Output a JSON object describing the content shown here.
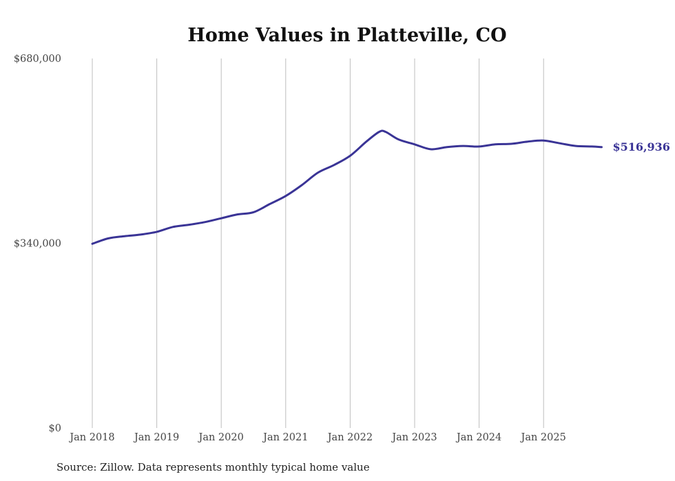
{
  "chart_data": {
    "type": "line",
    "title": "Home Values in Platteville, CO",
    "xlabel": "",
    "ylabel": "",
    "ylim": [
      0,
      680000
    ],
    "y_ticks": [
      {
        "value": 0,
        "label": "$0"
      },
      {
        "value": 340000,
        "label": "$340,000"
      },
      {
        "value": 680000,
        "label": "$680,000"
      }
    ],
    "x_ticks": [
      {
        "value": 2018,
        "label": "Jan 2018"
      },
      {
        "value": 2019,
        "label": "Jan 2019"
      },
      {
        "value": 2020,
        "label": "Jan 2020"
      },
      {
        "value": 2021,
        "label": "Jan 2021"
      },
      {
        "value": 2022,
        "label": "Jan 2022"
      },
      {
        "value": 2023,
        "label": "Jan 2023"
      },
      {
        "value": 2024,
        "label": "Jan 2024"
      },
      {
        "value": 2025,
        "label": "Jan 2025"
      }
    ],
    "xlim": [
      2018,
      2025.9
    ],
    "grid": "vertical",
    "series": [
      {
        "name": "Typical home value",
        "color": "#3a3496",
        "x": [
          2018.0,
          2018.25,
          2018.5,
          2018.75,
          2019.0,
          2019.25,
          2019.5,
          2019.75,
          2020.0,
          2020.25,
          2020.5,
          2020.75,
          2021.0,
          2021.25,
          2021.5,
          2021.75,
          2022.0,
          2022.25,
          2022.45,
          2022.55,
          2022.75,
          2023.0,
          2023.25,
          2023.5,
          2023.75,
          2024.0,
          2024.25,
          2024.5,
          2024.75,
          2025.0,
          2025.25,
          2025.5,
          2025.75,
          2025.9
        ],
        "values": [
          339000,
          349000,
          353000,
          356000,
          361000,
          370000,
          374000,
          379000,
          386000,
          393000,
          397000,
          412000,
          427000,
          447000,
          470000,
          484000,
          501000,
          527000,
          545000,
          545000,
          531000,
          522000,
          513000,
          517000,
          519000,
          518000,
          522000,
          523000,
          527000,
          529000,
          524000,
          519000,
          518000,
          516936
        ]
      }
    ],
    "end_label": "$516,936",
    "source": "Source: Zillow. Data represents monthly typical home value"
  }
}
